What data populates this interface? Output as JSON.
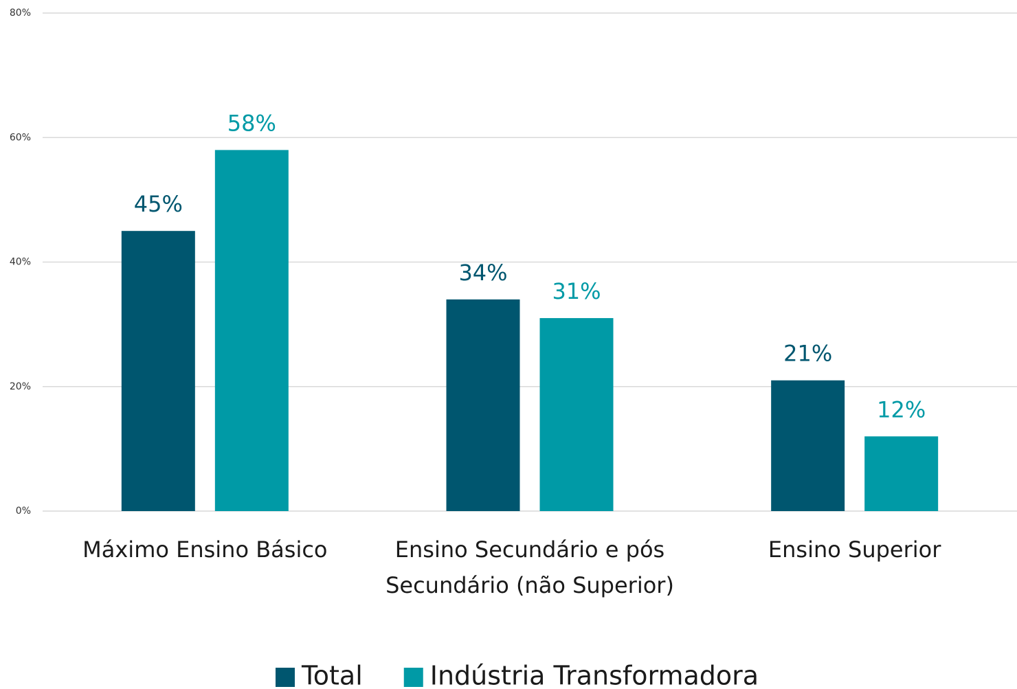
{
  "chart_data": {
    "type": "bar",
    "categories": [
      "Máximo Ensino Básico",
      "Ensino Secundário e pós Secundário (não Superior)",
      "Ensino Superior"
    ],
    "series": [
      {
        "name": "Total",
        "color": "#00566f",
        "values": [
          45,
          34,
          21
        ],
        "value_labels": [
          "45%",
          "34%",
          "21%"
        ]
      },
      {
        "name": "Indústria Transformadora",
        "color": "#009aa6",
        "values": [
          58,
          31,
          12
        ],
        "value_labels": [
          "58%",
          "31%",
          "12%"
        ]
      }
    ],
    "ylim": [
      0,
      80
    ],
    "yticks": [
      {
        "value": 0,
        "label": "0%"
      },
      {
        "value": 20,
        "label": "20%"
      },
      {
        "value": 40,
        "label": "40%"
      },
      {
        "value": 60,
        "label": "60%"
      },
      {
        "value": 80,
        "label": "80%"
      }
    ],
    "grid": true,
    "legend": "bottom"
  }
}
